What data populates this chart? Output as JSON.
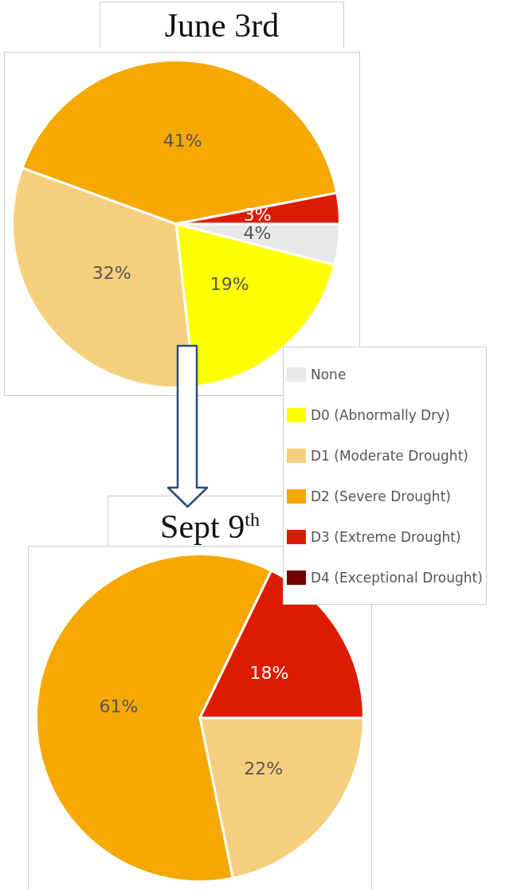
{
  "chart_data": [
    {
      "type": "pie",
      "title": "June 3rd",
      "categories": [
        null,
        null,
        null,
        null,
        null,
        null
      ],
      "values": [
        4,
        19,
        32,
        41,
        3,
        0
      ],
      "value_labels": [
        "4%",
        "19%",
        "32%",
        "41%",
        "3%",
        null
      ],
      "colors": [
        "#e8e8e8",
        "#ffff00",
        "#f6cf7e",
        "#f5a800",
        "#dc1c00",
        "#720000"
      ],
      "legend": false
    },
    {
      "type": "pie",
      "title": "Sept 9$^{th}$",
      "categories": [
        "None",
        "D0 (Abnormally Dry)",
        "D1 (Moderate Drought)",
        "D2 (Severe Drought)",
        "D3 (Extreme Drought)",
        "D4 (Exceptional Drought)"
      ],
      "values": [
        0,
        0,
        22,
        61,
        18,
        0
      ],
      "value_labels": [
        null,
        null,
        "22%",
        "61%",
        "18%",
        null
      ],
      "colors": [
        "#e8e8e8",
        "#ffff00",
        "#f6cf7e",
        "#f5a800",
        "#dc1c00",
        "#720000"
      ],
      "legend": "top right"
    }
  ]
}
